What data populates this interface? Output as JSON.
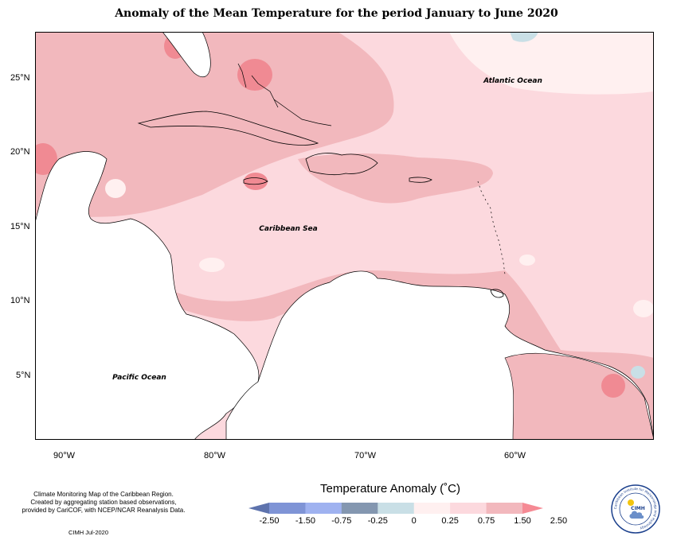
{
  "title": "Anomaly of the Mean Temperature for the period January to June 2020",
  "map": {
    "labels": {
      "atlantic": "Atlantic Ocean",
      "caribbean": "Caribbean Sea",
      "pacific": "Pacific Ocean"
    },
    "lat_ticks": [
      "25°N",
      "20°N",
      "15°N",
      "10°N",
      "5°N"
    ],
    "lon_ticks": [
      "90°W",
      "80°W",
      "70°W",
      "60°W"
    ],
    "colors": {
      "land": "#ffffff",
      "band_0_to_025": "#fff0f0",
      "band_025_to_075": "#fcd9de",
      "band_075_to_150": "#f2b8bd",
      "band_150_to_250": "#f08a93",
      "band_neg": "#c9dfe6"
    }
  },
  "credits": {
    "lines": [
      "Climate Monitoring Map of the Caribbean Region.",
      "Created by aggregating station based observations,",
      "provided by CariCOF, with NCEP/NCAR Reanalysis Data."
    ],
    "date": "CIMH Jul-2020"
  },
  "legend": {
    "title": "Temperature Anomaly (˚C)",
    "ticks": [
      "-2.50",
      "-1.50",
      "-0.75",
      "-0.25",
      "0",
      "0.25",
      "0.75",
      "1.50",
      "2.50"
    ],
    "colors": [
      "#5e73ad",
      "#7f94d6",
      "#9fb2f0",
      "#8497b0",
      "#c9dfe6",
      "#fff0f0",
      "#fcd9de",
      "#f2b8bd",
      "#f58a94"
    ]
  },
  "logo": {
    "text": "CIMH",
    "ring_text": "Caribbean Institute for Meteorology and Hydrology",
    "colors": {
      "ring": "#1a3f8c",
      "sun": "#f2c40f",
      "cloud": "#6b8fc9"
    }
  }
}
